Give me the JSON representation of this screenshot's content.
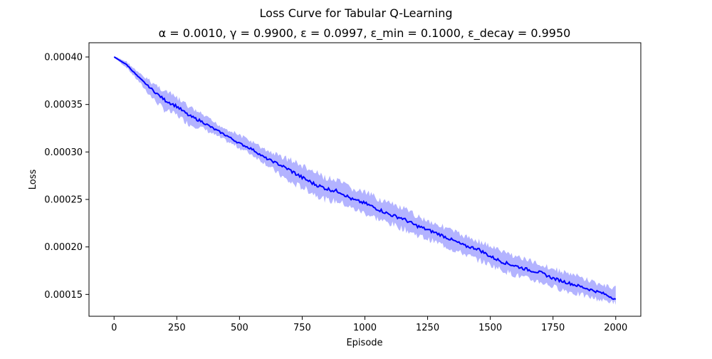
{
  "chart_data": {
    "type": "line",
    "title": "Loss Curve for Tabular Q-Learning",
    "subtitle": "α = 0.0010, γ = 0.9900, ε = 0.0997, ε_min = 0.1000, ε_decay = 0.9950",
    "xlabel": "Episode",
    "ylabel": "Loss",
    "xlim": [
      -100,
      2100
    ],
    "ylim": [
      0.000127,
      0.000415
    ],
    "grid": false,
    "x_ticks": [
      0,
      250,
      500,
      750,
      1000,
      1250,
      1500,
      1750,
      2000
    ],
    "x_tick_labels": [
      "0",
      "250",
      "500",
      "750",
      "1000",
      "1250",
      "1500",
      "1750",
      "2000"
    ],
    "y_ticks": [
      0.00015,
      0.0002,
      0.00025,
      0.0003,
      0.00035,
      0.0004
    ],
    "y_tick_labels": [
      "0.00015",
      "0.00020",
      "0.00025",
      "0.00030",
      "0.00035",
      "0.00040"
    ],
    "colors": {
      "line": "#0000ff",
      "band": "#b3b3ff"
    },
    "series": [
      {
        "x": [
          0,
          50,
          100,
          150,
          200,
          250,
          300,
          350,
          400,
          450,
          500,
          550,
          600,
          650,
          700,
          750,
          800,
          850,
          900,
          950,
          1000,
          1050,
          1100,
          1150,
          1200,
          1250,
          1300,
          1350,
          1400,
          1450,
          1500,
          1550,
          1600,
          1650,
          1700,
          1750,
          1800,
          1850,
          1900,
          1950,
          2000
        ],
        "values": [
          0.0004,
          0.000392,
          0.000378,
          0.000366,
          0.000355,
          0.000348,
          0.000338,
          0.000332,
          0.000324,
          0.000317,
          0.000309,
          0.000303,
          0.000294,
          0.000288,
          0.000281,
          0.000273,
          0.000266,
          0.000261,
          0.000258,
          0.00025,
          0.000246,
          0.00024,
          0.000234,
          0.00023,
          0.000223,
          0.000218,
          0.000213,
          0.000207,
          0.000201,
          0.000198,
          0.00019,
          0.000184,
          0.00018,
          0.000176,
          0.000173,
          0.000167,
          0.000163,
          0.000159,
          0.000155,
          0.000151,
          0.000145
        ],
        "lower": [
          0.000399,
          0.000388,
          0.000372,
          0.000355,
          0.000341,
          0.000336,
          0.000326,
          0.000323,
          0.000316,
          0.000309,
          0.000302,
          0.000295,
          0.000286,
          0.000275,
          0.000264,
          0.000259,
          0.000252,
          0.000245,
          0.000244,
          0.000237,
          0.000232,
          0.000226,
          0.000221,
          0.000216,
          0.00021,
          0.000205,
          0.0002,
          0.000194,
          0.000189,
          0.000183,
          0.000178,
          0.000172,
          0.000167,
          0.000163,
          0.00016,
          0.000155,
          0.000151,
          0.000147,
          0.000144,
          0.000141,
          0.000139
        ],
        "upper": [
          0.000401,
          0.000396,
          0.000384,
          0.000376,
          0.000368,
          0.00036,
          0.00035,
          0.000342,
          0.000333,
          0.000326,
          0.00032,
          0.000313,
          0.000305,
          0.0003,
          0.000296,
          0.000289,
          0.000282,
          0.000276,
          0.000272,
          0.000264,
          0.000261,
          0.000255,
          0.000249,
          0.000244,
          0.000237,
          0.000231,
          0.000226,
          0.00022,
          0.000214,
          0.00021,
          0.000204,
          0.000198,
          0.000194,
          0.000189,
          0.000185,
          0.00018,
          0.000176,
          0.000172,
          0.000167,
          0.000162,
          0.000159
        ]
      }
    ]
  }
}
